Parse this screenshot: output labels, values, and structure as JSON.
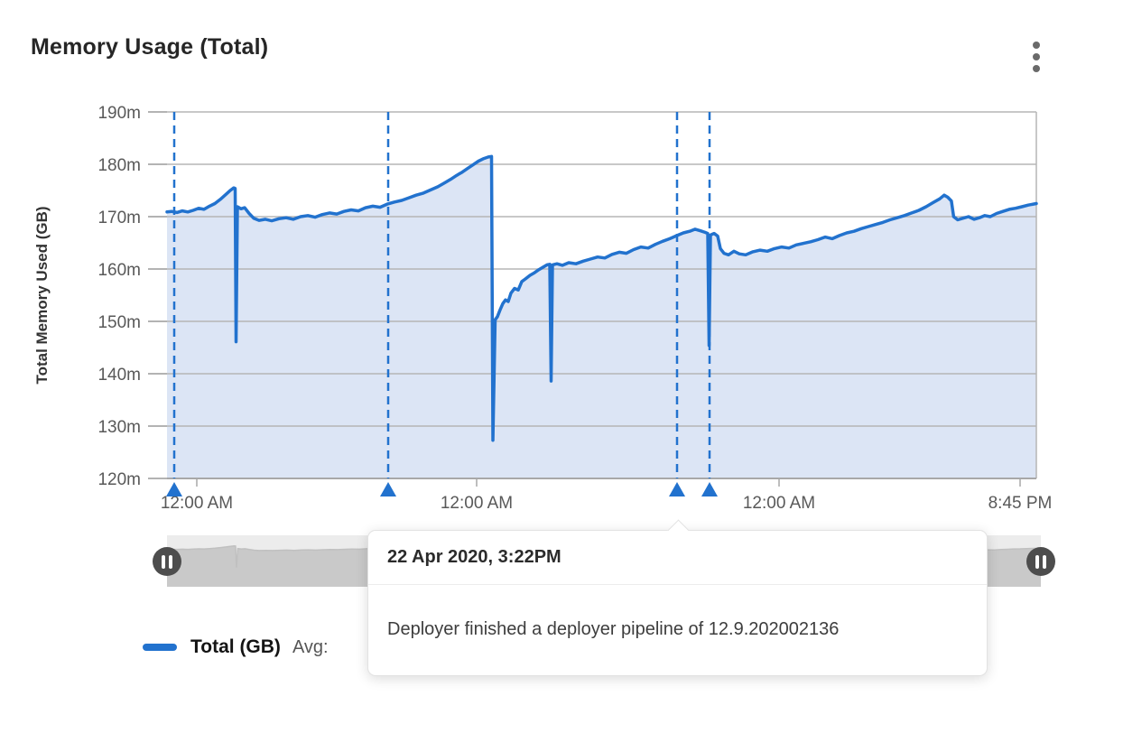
{
  "header": {
    "title": "Memory Usage (Total)"
  },
  "chart_data": {
    "type": "area",
    "title": "Memory Usage (Total)",
    "xlabel": "",
    "ylabel": "Total Memory Used (GB)",
    "ylim": [
      120,
      190
    ],
    "grid": true,
    "y_tick_values": [
      190,
      180,
      170,
      160,
      150,
      140,
      130,
      120
    ],
    "y_ticks": [
      "190m",
      "180m",
      "170m",
      "160m",
      "150m",
      "140m",
      "130m",
      "120m"
    ],
    "x_ticks": [
      {
        "pos": 0.0343,
        "label": "12:00 AM"
      },
      {
        "pos": 0.3562,
        "label": "12:00 AM"
      },
      {
        "pos": 0.704,
        "label": "12:00 AM"
      },
      {
        "pos": 0.9813,
        "label": "8:45 PM"
      }
    ],
    "series": [
      {
        "name": "Total (GB)",
        "color": "#2272CE",
        "fill": "#DCE5F5",
        "points": [
          [
            0.0,
            170.9
          ],
          [
            0.0052,
            171.0
          ],
          [
            0.0114,
            170.8
          ],
          [
            0.0177,
            171.1
          ],
          [
            0.0239,
            170.9
          ],
          [
            0.0301,
            171.2
          ],
          [
            0.0363,
            171.6
          ],
          [
            0.0426,
            171.4
          ],
          [
            0.0488,
            172.0
          ],
          [
            0.055,
            172.5
          ],
          [
            0.0613,
            173.3
          ],
          [
            0.0675,
            174.2
          ],
          [
            0.0727,
            175.0
          ],
          [
            0.0768,
            175.5
          ],
          [
            0.0784,
            175.4
          ],
          [
            0.0794,
            146.1
          ],
          [
            0.081,
            171.9
          ],
          [
            0.0851,
            171.5
          ],
          [
            0.0893,
            171.7
          ],
          [
            0.0945,
            170.6
          ],
          [
            0.0997,
            169.7
          ],
          [
            0.1059,
            169.3
          ],
          [
            0.1132,
            169.5
          ],
          [
            0.1205,
            169.2
          ],
          [
            0.1288,
            169.6
          ],
          [
            0.1371,
            169.8
          ],
          [
            0.1454,
            169.5
          ],
          [
            0.1537,
            170.0
          ],
          [
            0.162,
            170.2
          ],
          [
            0.1703,
            169.9
          ],
          [
            0.1786,
            170.4
          ],
          [
            0.1869,
            170.7
          ],
          [
            0.1952,
            170.5
          ],
          [
            0.2035,
            171.0
          ],
          [
            0.2118,
            171.3
          ],
          [
            0.2201,
            171.1
          ],
          [
            0.2284,
            171.7
          ],
          [
            0.2368,
            172.0
          ],
          [
            0.2451,
            171.8
          ],
          [
            0.2534,
            172.4
          ],
          [
            0.2617,
            172.8
          ],
          [
            0.27,
            173.1
          ],
          [
            0.2783,
            173.6
          ],
          [
            0.2866,
            174.1
          ],
          [
            0.2949,
            174.5
          ],
          [
            0.3032,
            175.1
          ],
          [
            0.3115,
            175.7
          ],
          [
            0.3188,
            176.4
          ],
          [
            0.3261,
            177.1
          ],
          [
            0.3333,
            177.9
          ],
          [
            0.3396,
            178.5
          ],
          [
            0.3458,
            179.2
          ],
          [
            0.352,
            179.9
          ],
          [
            0.3583,
            180.6
          ],
          [
            0.3645,
            181.1
          ],
          [
            0.3697,
            181.4
          ],
          [
            0.3733,
            181.5
          ],
          [
            0.3749,
            127.3
          ],
          [
            0.3775,
            150.3
          ],
          [
            0.3801,
            150.9
          ],
          [
            0.3832,
            152.2
          ],
          [
            0.3863,
            153.4
          ],
          [
            0.3894,
            154.1
          ],
          [
            0.3925,
            153.8
          ],
          [
            0.3956,
            155.4
          ],
          [
            0.3998,
            156.3
          ],
          [
            0.404,
            156.0
          ],
          [
            0.4081,
            157.6
          ],
          [
            0.4123,
            158.1
          ],
          [
            0.4175,
            158.8
          ],
          [
            0.4227,
            159.3
          ],
          [
            0.4279,
            159.9
          ],
          [
            0.4331,
            160.4
          ],
          [
            0.4372,
            160.8
          ],
          [
            0.4403,
            160.9
          ],
          [
            0.4419,
            138.6
          ],
          [
            0.4434,
            160.8
          ],
          [
            0.4486,
            161.0
          ],
          [
            0.4549,
            160.7
          ],
          [
            0.4621,
            161.2
          ],
          [
            0.4704,
            161.0
          ],
          [
            0.4787,
            161.5
          ],
          [
            0.487,
            161.9
          ],
          [
            0.4953,
            162.3
          ],
          [
            0.5036,
            162.1
          ],
          [
            0.5119,
            162.8
          ],
          [
            0.5202,
            163.2
          ],
          [
            0.5285,
            163.0
          ],
          [
            0.5368,
            163.7
          ],
          [
            0.5451,
            164.2
          ],
          [
            0.5535,
            164.0
          ],
          [
            0.5618,
            164.7
          ],
          [
            0.5701,
            165.3
          ],
          [
            0.5784,
            165.8
          ],
          [
            0.5867,
            166.4
          ],
          [
            0.594,
            166.9
          ],
          [
            0.6012,
            167.2
          ],
          [
            0.6075,
            167.6
          ],
          [
            0.6137,
            167.3
          ],
          [
            0.6189,
            167.0
          ],
          [
            0.622,
            166.8
          ],
          [
            0.6236,
            145.4
          ],
          [
            0.6251,
            166.5
          ],
          [
            0.6293,
            166.8
          ],
          [
            0.6334,
            166.3
          ],
          [
            0.6366,
            163.9
          ],
          [
            0.6407,
            163.0
          ],
          [
            0.6459,
            162.7
          ],
          [
            0.6521,
            163.4
          ],
          [
            0.6583,
            162.9
          ],
          [
            0.6656,
            162.7
          ],
          [
            0.6739,
            163.3
          ],
          [
            0.6822,
            163.6
          ],
          [
            0.6905,
            163.4
          ],
          [
            0.6988,
            163.9
          ],
          [
            0.7071,
            164.2
          ],
          [
            0.7154,
            164.0
          ],
          [
            0.7238,
            164.6
          ],
          [
            0.7321,
            164.9
          ],
          [
            0.7404,
            165.2
          ],
          [
            0.7487,
            165.6
          ],
          [
            0.757,
            166.1
          ],
          [
            0.7653,
            165.8
          ],
          [
            0.7736,
            166.4
          ],
          [
            0.7819,
            166.9
          ],
          [
            0.7902,
            167.2
          ],
          [
            0.7985,
            167.7
          ],
          [
            0.8068,
            168.1
          ],
          [
            0.8151,
            168.5
          ],
          [
            0.8234,
            168.9
          ],
          [
            0.8317,
            169.4
          ],
          [
            0.84,
            169.8
          ],
          [
            0.8483,
            170.2
          ],
          [
            0.8566,
            170.7
          ],
          [
            0.8649,
            171.2
          ],
          [
            0.8732,
            171.9
          ],
          [
            0.8815,
            172.7
          ],
          [
            0.8888,
            173.4
          ],
          [
            0.894,
            174.1
          ],
          [
            0.8981,
            173.7
          ],
          [
            0.9023,
            173.0
          ],
          [
            0.9049,
            170.0
          ],
          [
            0.9096,
            169.4
          ],
          [
            0.9158,
            169.7
          ],
          [
            0.922,
            170.0
          ],
          [
            0.9283,
            169.5
          ],
          [
            0.9345,
            169.8
          ],
          [
            0.9407,
            170.2
          ],
          [
            0.947,
            170.0
          ],
          [
            0.9542,
            170.6
          ],
          [
            0.9615,
            171.0
          ],
          [
            0.9688,
            171.4
          ],
          [
            0.9761,
            171.6
          ],
          [
            0.9834,
            171.9
          ],
          [
            0.9907,
            172.2
          ],
          [
            1.0,
            172.5
          ]
        ]
      }
    ],
    "annotations": {
      "color": "#2272CE",
      "positions": [
        0.0083,
        0.2544,
        0.5867,
        0.6241
      ]
    },
    "legend_position": "bottom"
  },
  "legend": {
    "swatch_color": "#2272CE",
    "label": "Total (GB)",
    "avg_label": "Avg:"
  },
  "tooltip": {
    "timestamp": "22 Apr 2020, 3:22PM",
    "message": "Deployer finished a deployer pipeline of 12.9.202002136"
  },
  "colors": {
    "line": "#2272CE",
    "fill": "#DCE5F5",
    "grid": "#B5B5B5",
    "axis_text": "#595959",
    "slider_bg": "#ECECEC",
    "slider_fill": "#C9C9C9",
    "handle": "#4D4D4D"
  }
}
